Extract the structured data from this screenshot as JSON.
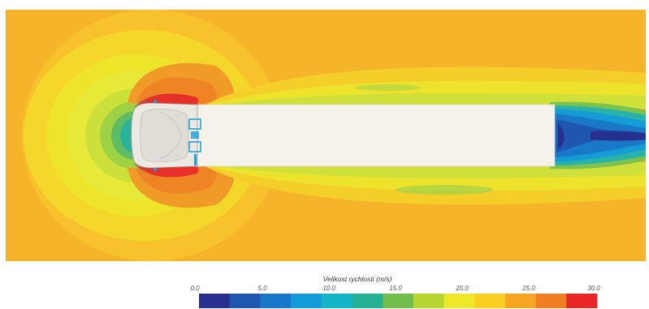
{
  "colorbar": {
    "title": "Velikost rychlosti (m/s)",
    "ticks": [
      "0.0",
      "5.0",
      "10.0",
      "15.0",
      "20.0",
      "25.0",
      "30.0"
    ],
    "min": 0,
    "max": 30,
    "colors": [
      "#27308c",
      "#1f56b0",
      "#1977c9",
      "#129bd8",
      "#15b5c8",
      "#23b394",
      "#71be4c",
      "#b7d634",
      "#eee72a",
      "#f9cf22",
      "#f7a525",
      "#ef7f22",
      "#e82626"
    ]
  },
  "colors": {
    "freestream": "#f6b42a",
    "vehicle": "#f5f2ec"
  }
}
